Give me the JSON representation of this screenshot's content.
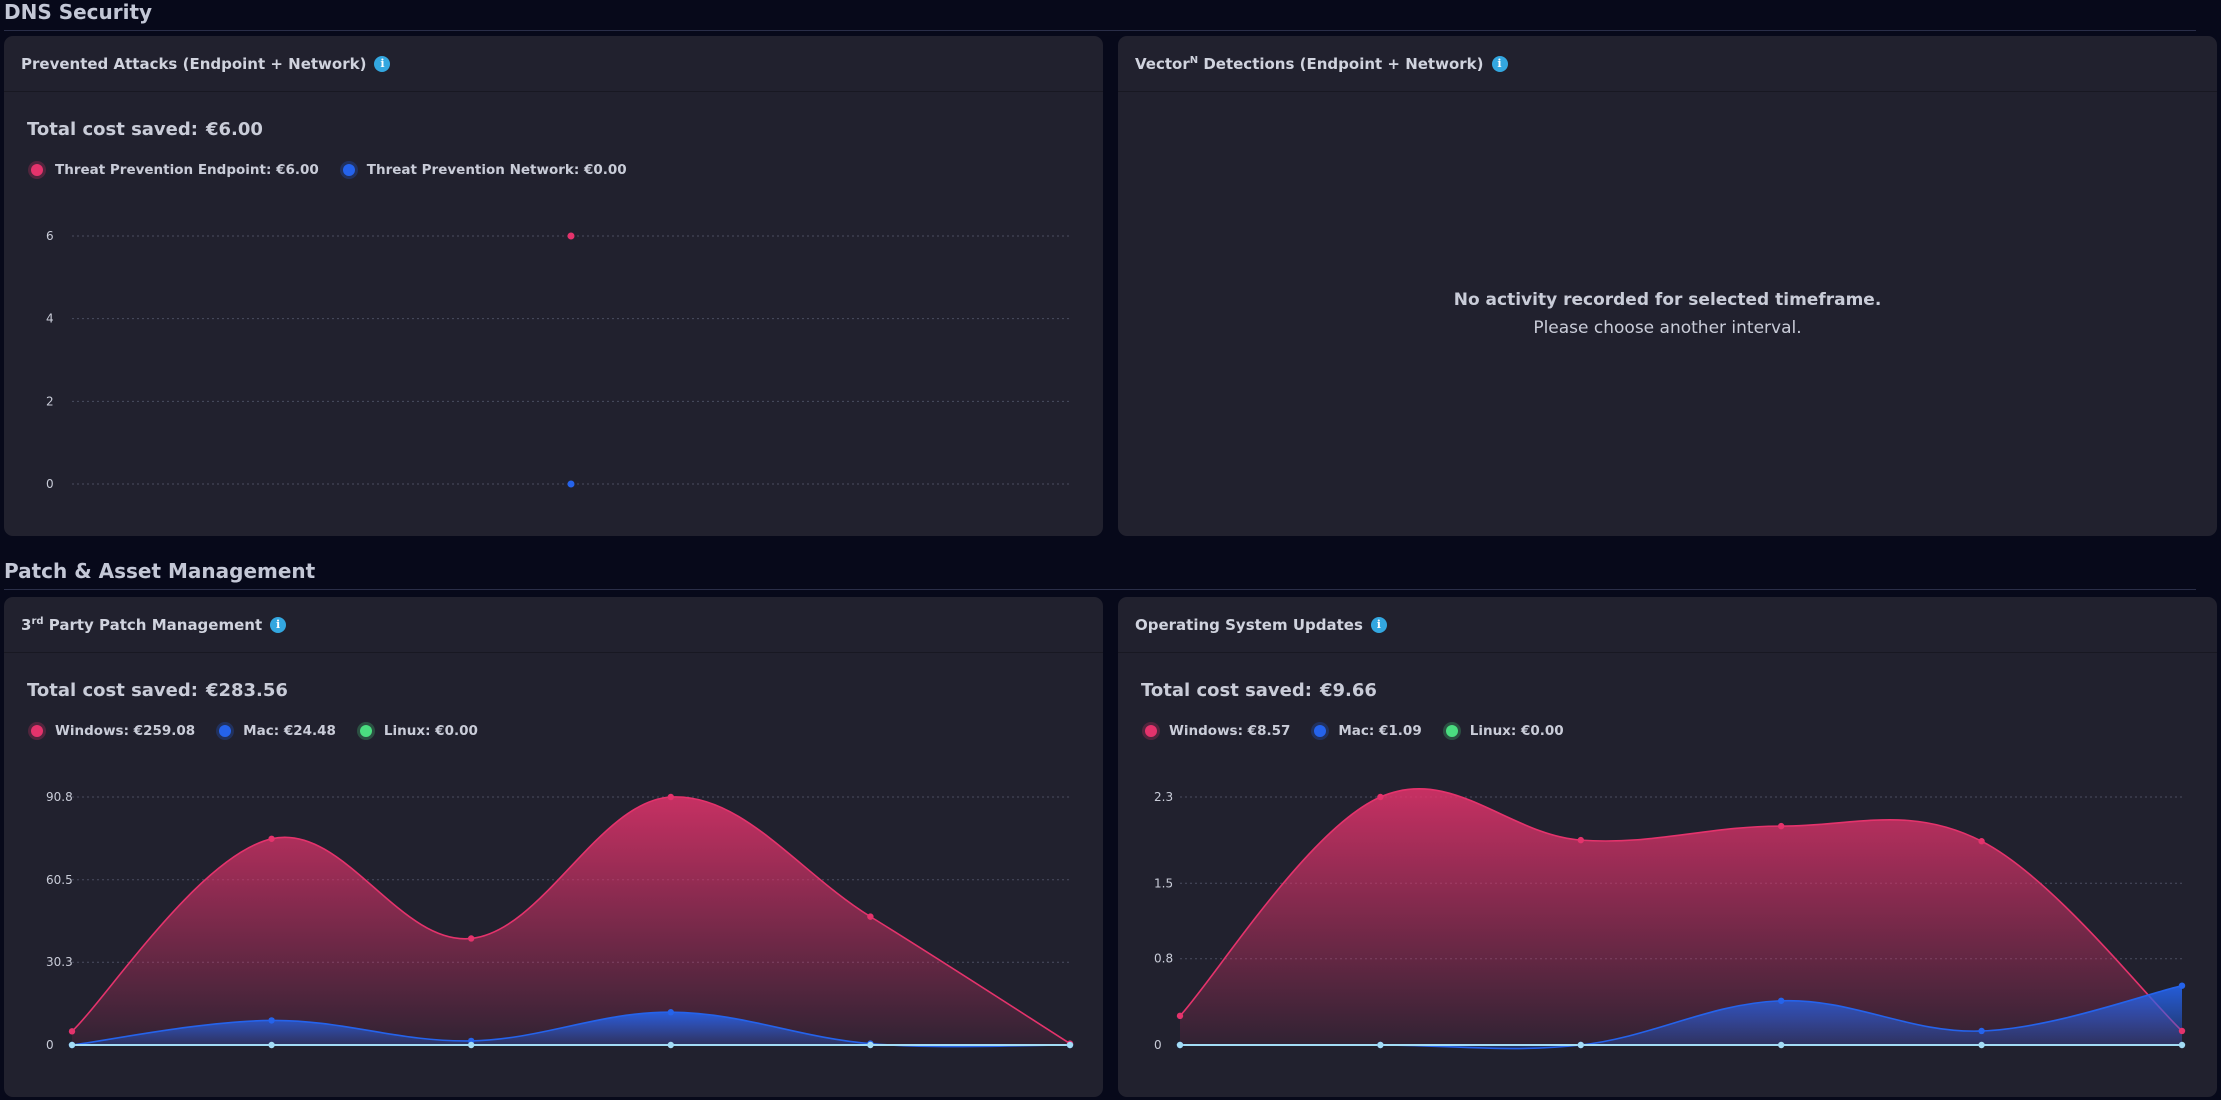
{
  "sections": [
    {
      "title": "DNS Security"
    },
    {
      "title": "Patch & Asset Management"
    }
  ],
  "colors": {
    "pink": "#e4336c",
    "blue": "#2563eb",
    "green": "#4ade80",
    "light": "#a3dcf5",
    "info": "#33a7e0"
  },
  "panels": {
    "prevented": {
      "title": "Prevented Attacks (Endpoint + Network)",
      "info_icon": "info-icon",
      "total_label": "Total cost saved:",
      "total_value": "€6.00",
      "legend": [
        {
          "label": "Threat Prevention Endpoint: €6.00",
          "color": "#e4336c"
        },
        {
          "label": "Threat Prevention Network: €0.00",
          "color": "#2563eb"
        }
      ]
    },
    "vector": {
      "title_main": "Vector",
      "title_sup": "N",
      "title_rest": " Detections (Endpoint + Network)",
      "info_icon": "info-icon",
      "empty_line1": "No activity recorded for selected timeframe.",
      "empty_line2": "Please choose another interval."
    },
    "third_party": {
      "title_main": "3",
      "title_sup": "rd",
      "title_rest": " Party Patch Management",
      "info_icon": "info-icon",
      "total_label": "Total cost saved:",
      "total_value": "€283.56",
      "legend": [
        {
          "label": "Windows: €259.08",
          "color": "#e4336c"
        },
        {
          "label": "Mac: €24.48",
          "color": "#2563eb"
        },
        {
          "label": "Linux: €0.00",
          "color": "#4ade80"
        }
      ]
    },
    "os_updates": {
      "title": "Operating System Updates",
      "info_icon": "info-icon",
      "total_label": "Total cost saved:",
      "total_value": "€9.66",
      "legend": [
        {
          "label": "Windows: €8.57",
          "color": "#e4336c"
        },
        {
          "label": "Mac: €1.09",
          "color": "#2563eb"
        },
        {
          "label": "Linux: €0.00",
          "color": "#4ade80"
        }
      ]
    }
  },
  "chart_data": [
    {
      "type": "scatter",
      "y_ticks": [
        "0",
        "2",
        "4",
        "6"
      ],
      "ylim": [
        0,
        6
      ],
      "x": [
        0.5
      ],
      "xlim": [
        0,
        1
      ],
      "series": [
        {
          "name": "Threat Prevention Endpoint",
          "values": [
            6
          ],
          "color": "#e4336c"
        },
        {
          "name": "Threat Prevention Network",
          "values": [
            0
          ],
          "color": "#2563eb"
        }
      ],
      "grid": true
    },
    {
      "type": "area",
      "y_ticks": [
        "0",
        "30.3",
        "60.5",
        "90.8"
      ],
      "ylim": [
        0,
        90.8
      ],
      "x": [
        0,
        1,
        2,
        3,
        4,
        5
      ],
      "series": [
        {
          "name": "Windows",
          "values": [
            5,
            75.5,
            39,
            90.8,
            47,
            0.5
          ],
          "color": "#e4336c"
        },
        {
          "name": "Mac",
          "values": [
            0,
            9,
            1.5,
            12,
            0.5,
            0
          ],
          "color": "#2563eb"
        },
        {
          "name": "Linux",
          "values": [
            0,
            0,
            0,
            0,
            0,
            0
          ],
          "color": "#a3dcf5"
        }
      ],
      "grid": true
    },
    {
      "type": "area",
      "y_ticks": [
        "0",
        "0.8",
        "1.5",
        "2.3"
      ],
      "ylim": [
        0,
        2.3
      ],
      "x": [
        0,
        1,
        2,
        3,
        4,
        5
      ],
      "series": [
        {
          "name": "Windows",
          "values": [
            0.27,
            2.3,
            1.9,
            2.03,
            1.89,
            0.13
          ],
          "color": "#e4336c"
        },
        {
          "name": "Mac",
          "values": [
            0,
            0,
            0,
            0.41,
            0.13,
            0.55
          ],
          "color": "#2563eb"
        },
        {
          "name": "Linux",
          "values": [
            0,
            0,
            0,
            0,
            0,
            0
          ],
          "color": "#a3dcf5"
        }
      ],
      "grid": true
    }
  ]
}
